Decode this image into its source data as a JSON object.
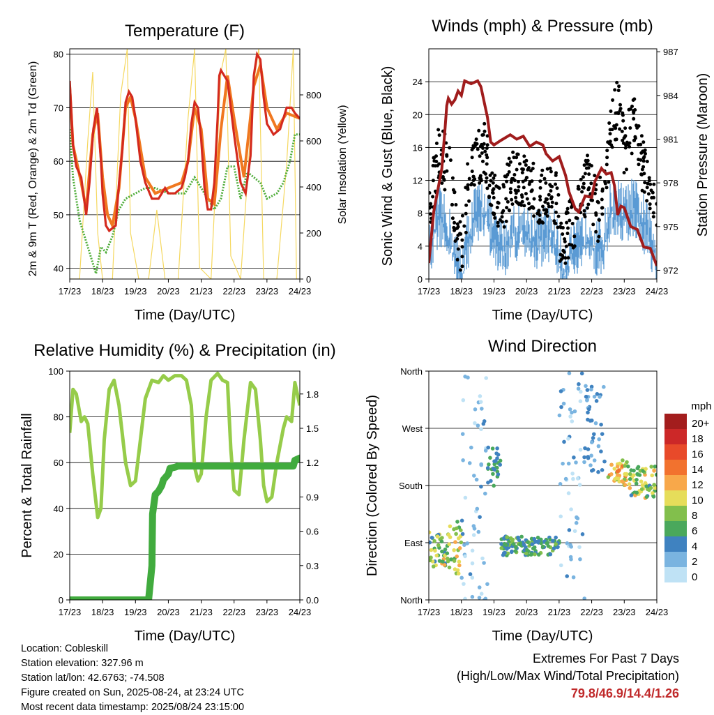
{
  "chart_data": [
    {
      "type": "line",
      "title": "Temperature (F)",
      "xlabel": "Time (Day/UTC)",
      "ylabel": "2m & 9m T (Red, Orange) & 2m Td (Green)",
      "y2label": "Solar Insolation (Yellow)",
      "x_ticks": [
        "17/23",
        "18/23",
        "19/23",
        "20/23",
        "21/23",
        "22/23",
        "23/23",
        "24/23"
      ],
      "ylim": [
        38,
        81
      ],
      "y_ticks": [
        40,
        50,
        60,
        70,
        80
      ],
      "y2lim": [
        0,
        1000
      ],
      "y2_ticks": [
        0,
        200,
        400,
        600,
        800
      ],
      "colors": {
        "t2": "#d42a1e",
        "t9": "#f07820",
        "td": "#4fad3a",
        "solar": "#f5d860"
      },
      "series": [
        {
          "name": "2m T",
          "color": "#d42a1e",
          "x": [
            0,
            0.05,
            0.1,
            0.2,
            0.35,
            0.5,
            0.6,
            0.72,
            0.83,
            0.95,
            1.0,
            1.1,
            1.2,
            1.4,
            1.5,
            1.6,
            1.7,
            1.8,
            1.9,
            2.0,
            2.15,
            2.3,
            2.5,
            2.7,
            2.9,
            3.0,
            3.2,
            3.4,
            3.5,
            3.6,
            3.7,
            3.8,
            3.9,
            4.0,
            4.1,
            4.2,
            4.3,
            4.4,
            4.5,
            4.55,
            4.6,
            4.7,
            4.8,
            5.0,
            5.2,
            5.35,
            5.5,
            5.6,
            5.7,
            5.8,
            5.9,
            6.0,
            6.2,
            6.4,
            6.5,
            6.6,
            6.75,
            6.85,
            7.0
          ],
          "values": [
            75,
            69,
            63,
            59,
            57,
            50,
            56,
            66,
            70,
            60,
            54,
            48,
            47,
            48,
            56,
            62,
            71,
            73,
            72,
            68,
            60,
            56,
            53,
            53,
            55,
            54,
            54,
            55,
            57,
            60,
            67,
            71,
            70,
            64,
            55,
            51,
            51,
            56,
            68,
            76,
            77,
            76,
            75,
            65,
            56,
            54,
            61,
            76,
            80,
            79,
            72,
            67,
            65,
            66,
            68,
            70,
            70,
            69,
            68
          ]
        },
        {
          "name": "9m T",
          "color": "#f07820",
          "x": [
            0,
            0.1,
            0.35,
            0.5,
            0.7,
            0.85,
            1.0,
            1.15,
            1.3,
            1.5,
            1.7,
            1.85,
            2.0,
            2.3,
            2.6,
            3.0,
            3.4,
            3.6,
            3.8,
            4.0,
            4.2,
            4.4,
            4.6,
            4.8,
            5.0,
            5.3,
            5.6,
            5.8,
            6.0,
            6.3,
            6.6,
            7.0
          ],
          "values": [
            74,
            63,
            56,
            51,
            65,
            69,
            57,
            50,
            48,
            55,
            70,
            72,
            68,
            57,
            54,
            55,
            56,
            60,
            70,
            66,
            53,
            52,
            66,
            76,
            68,
            57,
            74,
            78,
            70,
            66,
            69,
            68
          ]
        },
        {
          "name": "2m Td",
          "color": "#4fad3a",
          "x": [
            0,
            0.1,
            0.3,
            0.6,
            0.8,
            0.95,
            1.1,
            1.3,
            1.5,
            1.7,
            2.0,
            2.3,
            2.6,
            3.0,
            3.2,
            3.5,
            3.8,
            4.0,
            4.2,
            4.4,
            4.6,
            4.8,
            5.0,
            5.2,
            5.4,
            5.6,
            5.8,
            6.0,
            6.3,
            6.5,
            6.7,
            6.85,
            7.0
          ],
          "values": [
            66,
            57,
            49,
            43,
            39,
            44,
            43,
            46,
            51,
            53,
            54,
            55,
            55,
            54,
            54,
            54,
            57,
            55,
            53,
            51,
            53,
            59,
            59,
            53,
            58,
            57,
            56,
            53,
            54,
            56,
            60,
            65,
            65
          ]
        },
        {
          "name": "Solar Insolation",
          "axis": "y2",
          "color": "#f5d860",
          "x": [
            0,
            0.3,
            0.55,
            0.7,
            0.85,
            1.0,
            1.3,
            1.55,
            1.75,
            1.85,
            2.1,
            2.4,
            2.65,
            2.9,
            3.05,
            3.3,
            3.6,
            3.8,
            3.95,
            4.3,
            4.6,
            4.75,
            4.9,
            5.2,
            5.6,
            5.75,
            5.9,
            6.3,
            6.6,
            6.8,
            6.9,
            7.0
          ],
          "values": [
            0,
            0,
            600,
            900,
            200,
            0,
            0,
            800,
            1000,
            200,
            0,
            0,
            300,
            0,
            0,
            0,
            700,
            1000,
            50,
            0,
            900,
            1000,
            100,
            0,
            850,
            1000,
            0,
            0,
            500,
            1000,
            0,
            0
          ]
        }
      ]
    },
    {
      "type": "line",
      "title": "Winds (mph) & Pressure (mb)",
      "xlabel": "Time (Day/UTC)",
      "ylabel": "Sonic Wind & Gust (Blue, Black)",
      "y2label": "Station Pressure (Maroon)",
      "x_ticks": [
        "17/23",
        "18/23",
        "19/23",
        "20/23",
        "21/23",
        "22/23",
        "23/23",
        "24/23"
      ],
      "ylim": [
        0,
        28
      ],
      "y_ticks": [
        0,
        4,
        8,
        12,
        16,
        20,
        24
      ],
      "y2lim": [
        971.4,
        987.2
      ],
      "y2_ticks": [
        972,
        975,
        978,
        981,
        984,
        987
      ],
      "colors": {
        "wind": "#5a9bd4",
        "gust": "#000000",
        "pressure": "#a01c1c"
      },
      "series": [
        {
          "name": "Station Pressure",
          "axis": "y2",
          "color": "#a01c1c",
          "x": [
            0,
            0.15,
            0.4,
            0.5,
            0.55,
            0.6,
            0.7,
            0.8,
            0.9,
            1.0,
            1.1,
            1.3,
            1.5,
            1.6,
            1.8,
            1.9,
            2.0,
            2.2,
            2.5,
            2.7,
            2.9,
            3.1,
            3.3,
            3.5,
            3.6,
            3.8,
            4.0,
            4.2,
            4.3,
            4.4,
            4.5,
            4.6,
            4.8,
            5.0,
            5.1,
            5.3,
            5.45,
            5.6,
            5.7,
            5.8,
            5.9,
            6.0,
            6.2,
            6.4,
            6.6,
            6.8,
            7.0
          ],
          "values": [
            972.5,
            976,
            979,
            981.8,
            983.3,
            983.8,
            983.4,
            983.7,
            984.3,
            984,
            985,
            984.8,
            985,
            984.6,
            982.5,
            980.8,
            980.6,
            980.9,
            981.3,
            981.0,
            981.2,
            980.5,
            980.8,
            980.6,
            980.0,
            979.5,
            979.8,
            978.5,
            977.4,
            976.8,
            976.2,
            976.0,
            977.1,
            977.0,
            978.1,
            979.0,
            978.6,
            978.7,
            977.8,
            975.8,
            976.4,
            976.3,
            975.0,
            974.8,
            973.6,
            973.5,
            972.3
          ]
        },
        {
          "name": "Sonic Wind",
          "color": "#5a9bd4",
          "x": [
            0,
            0.3,
            0.6,
            0.85,
            1.0,
            1.2,
            1.4,
            1.7,
            2.0,
            2.3,
            2.6,
            3.0,
            3.4,
            3.7,
            3.9,
            4.1,
            4.3,
            4.6,
            4.9,
            5.2,
            5.4,
            5.6,
            5.8,
            6.0,
            6.3,
            6.6,
            6.8,
            7.0
          ],
          "values": [
            3,
            8,
            6,
            2,
            1,
            5,
            8,
            9,
            5,
            4,
            6,
            6,
            5,
            6,
            5,
            1,
            3,
            4,
            6,
            4,
            5,
            9,
            9,
            8,
            9,
            7,
            5,
            3
          ]
        },
        {
          "name": "Gust",
          "color": "#000000",
          "x": [
            0,
            0.3,
            0.6,
            0.85,
            1.0,
            1.2,
            1.4,
            1.7,
            2.0,
            2.3,
            2.6,
            3.0,
            3.4,
            3.7,
            3.9,
            4.1,
            4.3,
            4.6,
            4.9,
            5.2,
            5.4,
            5.6,
            5.8,
            6.0,
            6.3,
            6.6,
            6.8,
            7.0
          ],
          "values": [
            8,
            15,
            14,
            6,
            3,
            11,
            14,
            16,
            10,
            9,
            13,
            12,
            10,
            11,
            10,
            3,
            6,
            8,
            12,
            8,
            11,
            18,
            21,
            16,
            19,
            13,
            11,
            7
          ]
        }
      ]
    },
    {
      "type": "line",
      "title": "Relative Humidity (%) & Precipitation (in)",
      "xlabel": "Time (Day/UTC)",
      "ylabel": "Percent & Total Rainfall",
      "x_ticks": [
        "17/23",
        "18/23",
        "19/23",
        "20/23",
        "21/23",
        "22/23",
        "23/23",
        "24/23"
      ],
      "ylim": [
        0,
        100
      ],
      "y_ticks": [
        0,
        20,
        40,
        60,
        80,
        100
      ],
      "y2lim": [
        0,
        2
      ],
      "y2_ticks": [
        0.0,
        0.3,
        0.6,
        0.9,
        1.2,
        1.5,
        1.8
      ],
      "colors": {
        "rh": "#96cc4a",
        "precip": "#41ab3e"
      },
      "series": [
        {
          "name": "Relative Humidity",
          "color": "#96cc4a",
          "x": [
            0,
            0.1,
            0.2,
            0.35,
            0.45,
            0.55,
            0.7,
            0.85,
            0.95,
            1.05,
            1.2,
            1.35,
            1.5,
            1.7,
            1.85,
            2.0,
            2.15,
            2.3,
            2.5,
            2.7,
            2.85,
            3.0,
            3.2,
            3.4,
            3.55,
            3.7,
            3.8,
            3.9,
            4.0,
            4.15,
            4.3,
            4.5,
            4.65,
            4.8,
            4.9,
            5.0,
            5.15,
            5.3,
            5.5,
            5.65,
            5.8,
            5.9,
            6.0,
            6.15,
            6.3,
            6.5,
            6.6,
            6.75,
            6.85,
            7.0
          ],
          "values": [
            73,
            92,
            90,
            78,
            80,
            77,
            55,
            36,
            40,
            70,
            92,
            96,
            85,
            60,
            50,
            52,
            70,
            88,
            96,
            95,
            98,
            96,
            98,
            98,
            96,
            85,
            58,
            52,
            55,
            80,
            96,
            99,
            96,
            95,
            66,
            48,
            46,
            70,
            95,
            92,
            70,
            50,
            43,
            45,
            60,
            75,
            80,
            78,
            95,
            85
          ]
        },
        {
          "name": "Total Rainfall",
          "axis": "y2",
          "color": "#41ab3e",
          "x": [
            0,
            1.5,
            2.4,
            2.5,
            2.52,
            2.6,
            2.7,
            2.8,
            2.85,
            3.0,
            3.05,
            3.2,
            3.3,
            4.0,
            5.0,
            6.0,
            6.8,
            6.85,
            7.0
          ],
          "values": [
            0,
            0,
            0,
            0.3,
            0.75,
            0.92,
            0.95,
            1.0,
            1.05,
            1.1,
            1.15,
            1.16,
            1.17,
            1.17,
            1.17,
            1.17,
            1.17,
            1.22,
            1.24
          ]
        }
      ]
    },
    {
      "type": "scatter",
      "title": "Wind Direction",
      "xlabel": "Time (Day/UTC)",
      "ylabel": "Direction (Colored By Speed)",
      "x_ticks": [
        "17/23",
        "18/23",
        "19/23",
        "20/23",
        "21/23",
        "22/23",
        "23/23",
        "24/23"
      ],
      "y_ticks": [
        "North",
        "East",
        "South",
        "West",
        "North"
      ],
      "ylim": [
        0,
        360
      ],
      "legend": {
        "title": "mph",
        "labels": [
          "20+",
          "18",
          "16",
          "14",
          "12",
          "10",
          "8",
          "6",
          "4",
          "2",
          "0"
        ],
        "colors": [
          "#a31d1d",
          "#cc2828",
          "#e84a2a",
          "#f2722e",
          "#f8a84a",
          "#e6dd5a",
          "#82bf4c",
          "#4aa85c",
          "#3f82c0",
          "#7ab4e0",
          "#bfe2f5"
        ],
        "placement": "right"
      },
      "clusters": [
        {
          "x": [
            0,
            0.6
          ],
          "dir": [
            50,
            110
          ],
          "speed": [
            4,
            12
          ]
        },
        {
          "x": [
            0.6,
            1.0
          ],
          "dir": [
            40,
            130
          ],
          "speed": [
            6,
            12
          ]
        },
        {
          "x": [
            1.0,
            1.8
          ],
          "dir": [
            0,
            360
          ],
          "speed": [
            0,
            4
          ]
        },
        {
          "x": [
            1.8,
            2.2
          ],
          "dir": [
            170,
            240
          ],
          "speed": [
            3,
            7
          ]
        },
        {
          "x": [
            2.2,
            4.0
          ],
          "dir": [
            70,
            100
          ],
          "speed": [
            3,
            8
          ]
        },
        {
          "x": [
            4.0,
            4.8
          ],
          "dir": [
            0,
            360
          ],
          "speed": [
            0,
            4
          ]
        },
        {
          "x": [
            4.8,
            5.4
          ],
          "dir": [
            200,
            340
          ],
          "speed": [
            2,
            5
          ]
        },
        {
          "x": [
            5.5,
            6.1
          ],
          "dir": [
            180,
            220
          ],
          "speed": [
            8,
            14
          ]
        },
        {
          "x": [
            6.1,
            7.0
          ],
          "dir": [
            160,
            210
          ],
          "speed": [
            4,
            12
          ]
        }
      ]
    }
  ],
  "info": {
    "location": "Location: Cobleskill",
    "elevation": "Station elevation: 327.96 m",
    "latlon": "Station lat/lon: 42.6763; -74.508",
    "created": "Figure created on Sun, 2025-08-24, at 23:24 UTC",
    "recent": "Most recent data timestamp: 2025/08/24 23:15:00"
  },
  "extremes": {
    "title": "Extremes For Past 7 Days",
    "subtitle": "(High/Low/Max Wind/Total Precipitation)",
    "values": "79.8/46.9/14.4/1.26"
  }
}
